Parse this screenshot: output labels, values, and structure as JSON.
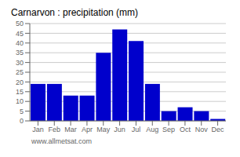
{
  "chart_data": {
    "type": "bar",
    "title": "Carnarvon : precipitation (mm)",
    "categories": [
      "Jan",
      "Feb",
      "Mar",
      "Apr",
      "May",
      "Jun",
      "Jul",
      "Aug",
      "Sep",
      "Oct",
      "Nov",
      "Dec"
    ],
    "values": [
      19,
      19,
      13,
      13,
      35,
      47,
      41,
      19,
      5,
      7,
      5,
      1
    ],
    "color": "#0000cc",
    "ylim": [
      0,
      50
    ],
    "yticks": [
      0,
      5,
      10,
      15,
      20,
      25,
      30,
      35,
      40,
      45,
      50
    ],
    "grid": true,
    "annotations": [
      "www.allmetsat.com"
    ]
  }
}
